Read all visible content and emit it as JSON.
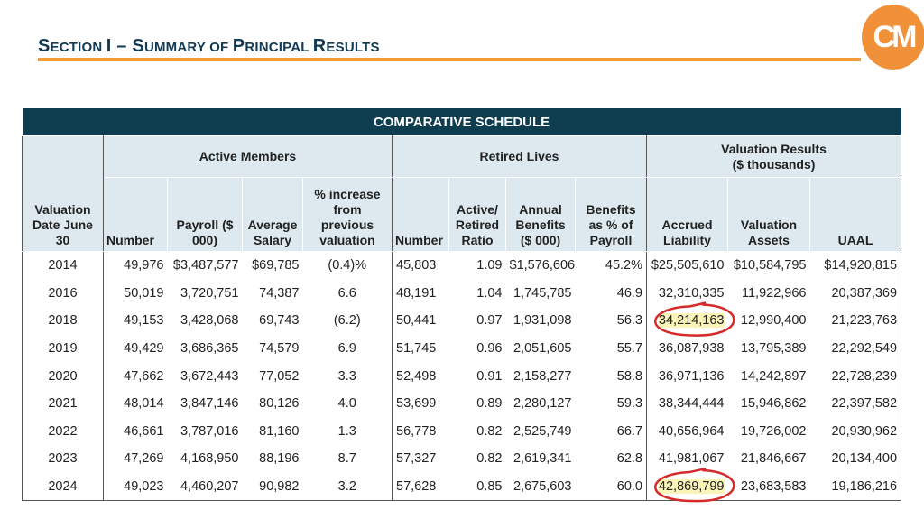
{
  "header": {
    "title_parts": [
      {
        "big": "S",
        "small": "ECTION "
      },
      {
        "big": "I – S",
        "small": "UMMARY OF "
      },
      {
        "big": "P",
        "small": "RINCIPAL "
      },
      {
        "big": "R",
        "small": "ESULTS"
      }
    ],
    "title": "Section I – Summary of Principal Results",
    "logo_text": "CM"
  },
  "colors": {
    "accent": "#f29a35",
    "table_header": "#0d3d4f",
    "subheader": "#dde9ee",
    "highlight": "#fbf4b8",
    "annotation": "#d62a2a"
  },
  "table": {
    "caption": "COMPARATIVE SCHEDULE",
    "groups": {
      "active": "Active Members",
      "retired": "Retired Lives",
      "valuation": "Valuation Results",
      "valuation_sub": "($ thousands)"
    },
    "columns": [
      "Valuation Date June 30",
      "Number",
      "Payroll ($ 000)",
      "Average Salary",
      "% increase from previous valuation",
      "Number",
      "Active/ Retired Ratio",
      "Annual Benefits ($ 000)",
      "Benefits as % of Payroll",
      "Accrued Liability",
      "Valuation Assets",
      "UAAL"
    ],
    "rows": [
      [
        "2014",
        "49,976",
        "$3,487,577",
        "$69,785",
        "(0.4)%",
        "45,803",
        "1.09",
        "$1,576,606",
        "45.2%",
        "$25,505,610",
        "$10,584,795",
        "$14,920,815"
      ],
      [
        "2016",
        "50,019",
        "3,720,751",
        "74,387",
        "6.6",
        "48,191",
        "1.04",
        "1,745,785",
        "46.9",
        "32,310,335",
        "11,922,966",
        "20,387,369"
      ],
      [
        "2018",
        "49,153",
        "3,428,068",
        "69,743",
        "(6.2)",
        "50,441",
        "0.97",
        "1,931,098",
        "56.3",
        "34,214,163",
        "12,990,400",
        "21,223,763"
      ],
      [
        "2019",
        "49,429",
        "3,686,365",
        "74,579",
        "6.9",
        "51,745",
        "0.96",
        "2,051,605",
        "55.7",
        "36,087,938",
        "13,795,389",
        "22,292,549"
      ],
      [
        "2020",
        "47,662",
        "3,672,443",
        "77,052",
        "3.3",
        "52,498",
        "0.91",
        "2,158,277",
        "58.8",
        "36,971,136",
        "14,242,897",
        "22,728,239"
      ],
      [
        "2021",
        "48,014",
        "3,847,146",
        "80,126",
        "4.0",
        "53,699",
        "0.89",
        "2,280,127",
        "59.3",
        "38,344,444",
        "15,946,862",
        "22,397,582"
      ],
      [
        "2022",
        "46,661",
        "3,787,016",
        "81,160",
        "1.3",
        "56,778",
        "0.82",
        "2,525,749",
        "66.7",
        "40,656,964",
        "19,726,002",
        "20,930,962"
      ],
      [
        "2023",
        "47,269",
        "4,168,950",
        "88,196",
        "8.7",
        "57,327",
        "0.82",
        "2,619,341",
        "62.8",
        "41,981,067",
        "21,846,667",
        "20,134,400"
      ],
      [
        "2024",
        "49,023",
        "4,460,207",
        "90,982",
        "3.2",
        "57,628",
        "0.85",
        "2,675,603",
        "60.0",
        "42,869,799",
        "23,683,583",
        "19,186,216"
      ]
    ],
    "circled_cells": [
      {
        "row": 2,
        "col": 9
      },
      {
        "row": 8,
        "col": 9
      }
    ]
  }
}
